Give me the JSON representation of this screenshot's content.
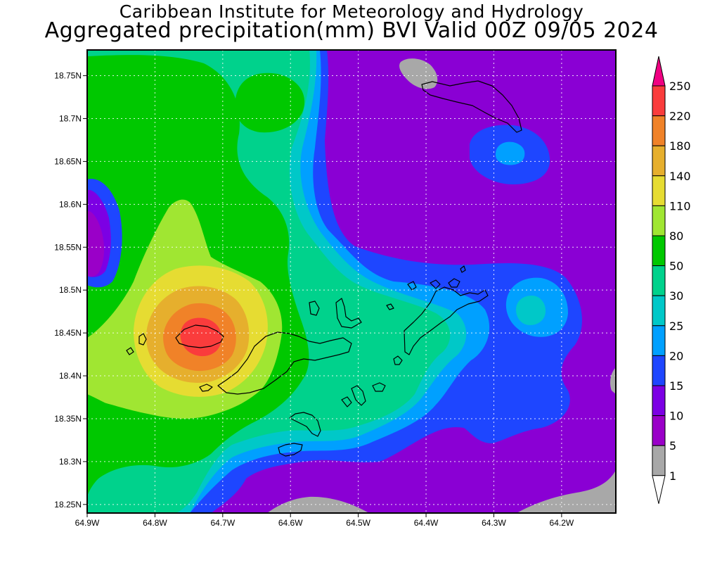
{
  "header": {
    "line1": "Caribbean Institute for Meteorology and Hydrology",
    "line2": "Aggregated precipitation(mm) BVI Valid 00Z 09/05 2024"
  },
  "map": {
    "lon_range": [
      -64.9,
      -64.12
    ],
    "lat_range": [
      18.24,
      18.78
    ],
    "lon_ticks": [
      {
        "value": -64.9,
        "label": "64.9W"
      },
      {
        "value": -64.8,
        "label": "64.8W"
      },
      {
        "value": -64.7,
        "label": "64.7W"
      },
      {
        "value": -64.6,
        "label": "64.6W"
      },
      {
        "value": -64.5,
        "label": "64.5W"
      },
      {
        "value": -64.4,
        "label": "64.4W"
      },
      {
        "value": -64.3,
        "label": "64.3W"
      },
      {
        "value": -64.2,
        "label": "64.2W"
      }
    ],
    "lat_ticks": [
      {
        "value": 18.25,
        "label": "18.25N"
      },
      {
        "value": 18.3,
        "label": "18.3N"
      },
      {
        "value": 18.35,
        "label": "18.35N"
      },
      {
        "value": 18.4,
        "label": "18.4N"
      },
      {
        "value": 18.45,
        "label": "18.45N"
      },
      {
        "value": 18.5,
        "label": "18.5N"
      },
      {
        "value": 18.55,
        "label": "18.55N"
      },
      {
        "value": 18.6,
        "label": "18.6N"
      },
      {
        "value": 18.65,
        "label": "18.65N"
      },
      {
        "value": 18.7,
        "label": "18.7N"
      },
      {
        "value": 18.75,
        "label": "18.75N"
      }
    ],
    "grid": true,
    "colors": {
      "background": "#8a00d4",
      "gray": "#a8a8a8",
      "magenta": "#9a00c8",
      "purple": "#7c00e4",
      "blue": "#1e46ff",
      "sky": "#00a0ff",
      "cyan": "#00c8c8",
      "teal": "#00d28c",
      "green": "#00c800",
      "lime": "#a0e632",
      "yellow": "#e6dc32",
      "gold": "#e6af2d",
      "orange": "#f08228",
      "red": "#fa3c3c",
      "land_outline": "#000000"
    }
  },
  "colorbar": {
    "levels": [
      {
        "label": "250",
        "color": "#f00082"
      },
      {
        "label": "220",
        "color": "#fa3c3c"
      },
      {
        "label": "180",
        "color": "#f08228"
      },
      {
        "label": "140",
        "color": "#e6af2d"
      },
      {
        "label": "110",
        "color": "#e6dc32"
      },
      {
        "label": "80",
        "color": "#a0e632"
      },
      {
        "label": "50",
        "color": "#00c800"
      },
      {
        "label": "30",
        "color": "#00d28c"
      },
      {
        "label": "25",
        "color": "#00c8c8"
      },
      {
        "label": "20",
        "color": "#00a0ff"
      },
      {
        "label": "15",
        "color": "#1e46ff"
      },
      {
        "label": "10",
        "color": "#7c00e4"
      },
      {
        "label": "5",
        "color": "#9a00c8"
      },
      {
        "label": "1",
        "color": "#a8a8a8"
      }
    ],
    "top_arrow_color": "#f00082",
    "bottom_arrow_color": "#ffffff"
  }
}
